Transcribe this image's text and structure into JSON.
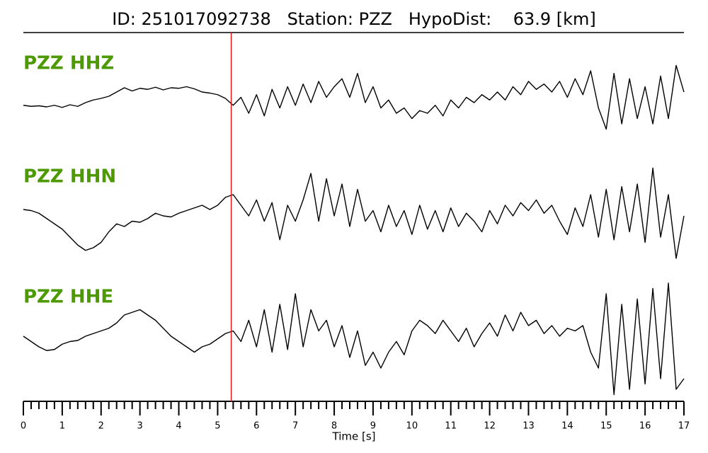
{
  "chart_data": {
    "type": "seismogram",
    "title": "ID: 251017092738   Station: PZZ   HypoDist:    63.9 [km]",
    "x_label": "Time [s]",
    "xlim": [
      0,
      17
    ],
    "xticks": [
      0,
      1,
      2,
      3,
      4,
      5,
      6,
      7,
      8,
      9,
      10,
      11,
      12,
      13,
      14,
      15,
      16,
      17
    ],
    "xminorticks": [
      0.2,
      0.4,
      0.6,
      0.8,
      1.2,
      1.4,
      1.6,
      1.8,
      2.2,
      2.4,
      2.6,
      2.8,
      3.2,
      3.4,
      3.6,
      3.8,
      4.2,
      4.4,
      4.6,
      4.8,
      5.2,
      5.4,
      5.6,
      5.8,
      6.2,
      6.4,
      6.6,
      6.8,
      7.2,
      7.4,
      7.6,
      7.8,
      8.2,
      8.4,
      8.6,
      8.8,
      9.2,
      9.4,
      9.6,
      9.8,
      10.2,
      10.4,
      10.6,
      10.8,
      11.2,
      11.4,
      11.6,
      11.8,
      12.2,
      12.4,
      12.6,
      12.8,
      13.2,
      13.4,
      13.6,
      13.8,
      14.2,
      14.4,
      14.6,
      14.8,
      15.2,
      15.4,
      15.6,
      15.8,
      16.2,
      16.4,
      16.6,
      16.8
    ],
    "ylim": [
      -1,
      1
    ],
    "pick_time": 5.35,
    "pick_color": "#e8141c",
    "label_color": "#4c9a00",
    "x": [
      0,
      0.2,
      0.4,
      0.6,
      0.8,
      1,
      1.2,
      1.4,
      1.6,
      1.8,
      2,
      2.2,
      2.4,
      2.6,
      2.8,
      3,
      3.2,
      3.4,
      3.6,
      3.8,
      4,
      4.2,
      4.4,
      4.6,
      4.8,
      5,
      5.2,
      5.4,
      5.6,
      5.8,
      6,
      6.2,
      6.4,
      6.6,
      6.8,
      7,
      7.2,
      7.4,
      7.6,
      7.8,
      8,
      8.2,
      8.4,
      8.6,
      8.8,
      9,
      9.2,
      9.4,
      9.6,
      9.8,
      10,
      10.2,
      10.4,
      10.6,
      10.8,
      11,
      11.2,
      11.4,
      11.6,
      11.8,
      12,
      12.2,
      12.4,
      12.6,
      12.8,
      13,
      13.2,
      13.4,
      13.6,
      13.8,
      14,
      14.2,
      14.4,
      14.6,
      14.8,
      15,
      15.2,
      15.4,
      15.6,
      15.8,
      16,
      16.2,
      16.4,
      16.6,
      16.8,
      17
    ],
    "series": [
      {
        "name": "PZZ HHZ",
        "color": "#000000",
        "values": [
          -0.05,
          -0.07,
          -0.06,
          -0.08,
          -0.05,
          -0.09,
          -0.04,
          -0.07,
          0.0,
          0.05,
          0.08,
          0.12,
          0.2,
          0.28,
          0.22,
          0.27,
          0.25,
          0.29,
          0.24,
          0.28,
          0.27,
          0.3,
          0.26,
          0.2,
          0.18,
          0.15,
          0.08,
          -0.05,
          0.1,
          -0.2,
          0.15,
          -0.25,
          0.25,
          -0.1,
          0.3,
          -0.05,
          0.35,
          0.0,
          0.4,
          0.1,
          0.3,
          0.45,
          0.1,
          0.55,
          0.0,
          0.3,
          -0.1,
          0.05,
          -0.2,
          -0.1,
          -0.3,
          -0.15,
          -0.2,
          -0.05,
          -0.25,
          0.05,
          -0.1,
          0.1,
          0.0,
          0.15,
          0.05,
          0.2,
          0.05,
          0.3,
          0.15,
          0.4,
          0.25,
          0.35,
          0.2,
          0.4,
          0.1,
          0.45,
          0.15,
          0.6,
          -0.1,
          -0.5,
          0.55,
          -0.4,
          0.45,
          -0.3,
          0.3,
          -0.4,
          0.5,
          -0.3,
          0.7,
          0.2
        ]
      },
      {
        "name": "PZZ HHN",
        "color": "#000000",
        "values": [
          0.12,
          0.1,
          0.05,
          -0.05,
          -0.15,
          -0.25,
          -0.4,
          -0.55,
          -0.65,
          -0.6,
          -0.5,
          -0.3,
          -0.15,
          -0.2,
          -0.1,
          -0.12,
          -0.05,
          0.05,
          0.0,
          -0.02,
          0.05,
          0.1,
          0.15,
          0.2,
          0.12,
          0.2,
          0.35,
          0.4,
          0.2,
          0.0,
          0.3,
          -0.1,
          0.25,
          -0.45,
          0.2,
          -0.1,
          0.3,
          0.8,
          -0.1,
          0.7,
          0.0,
          0.6,
          -0.2,
          0.5,
          -0.1,
          0.1,
          -0.3,
          0.2,
          -0.2,
          0.1,
          -0.35,
          0.2,
          -0.25,
          0.1,
          -0.3,
          0.15,
          -0.2,
          0.05,
          -0.1,
          -0.3,
          0.1,
          -0.15,
          0.2,
          0.0,
          0.25,
          0.1,
          0.3,
          0.05,
          0.2,
          -0.1,
          -0.35,
          0.15,
          -0.2,
          0.4,
          -0.4,
          0.5,
          -0.45,
          0.55,
          -0.3,
          0.6,
          -0.5,
          0.9,
          -0.4,
          0.4,
          -0.8,
          0.0
        ]
      },
      {
        "name": "PZZ HHE",
        "color": "#000000",
        "values": [
          0.0,
          -0.1,
          -0.2,
          -0.27,
          -0.25,
          -0.15,
          -0.1,
          -0.08,
          0.0,
          0.05,
          0.1,
          0.15,
          0.25,
          0.4,
          0.45,
          0.5,
          0.4,
          0.3,
          0.15,
          0.0,
          -0.1,
          -0.2,
          -0.3,
          -0.2,
          -0.15,
          -0.05,
          0.05,
          0.1,
          -0.1,
          0.3,
          -0.2,
          0.5,
          -0.3,
          0.6,
          -0.25,
          0.8,
          -0.2,
          0.5,
          0.1,
          0.3,
          -0.2,
          0.2,
          -0.4,
          0.1,
          -0.55,
          -0.3,
          -0.6,
          -0.3,
          -0.1,
          -0.35,
          0.1,
          0.3,
          0.2,
          0.05,
          0.3,
          0.1,
          -0.1,
          0.15,
          -0.2,
          0.05,
          0.25,
          0.0,
          0.4,
          0.1,
          0.45,
          0.2,
          0.3,
          0.05,
          0.2,
          0.0,
          0.15,
          0.1,
          0.2,
          -0.3,
          -0.6,
          0.8,
          -1.1,
          0.6,
          -1.0,
          0.7,
          -0.9,
          0.9,
          -0.8,
          1.0,
          -1.0,
          -0.8
        ]
      }
    ]
  }
}
